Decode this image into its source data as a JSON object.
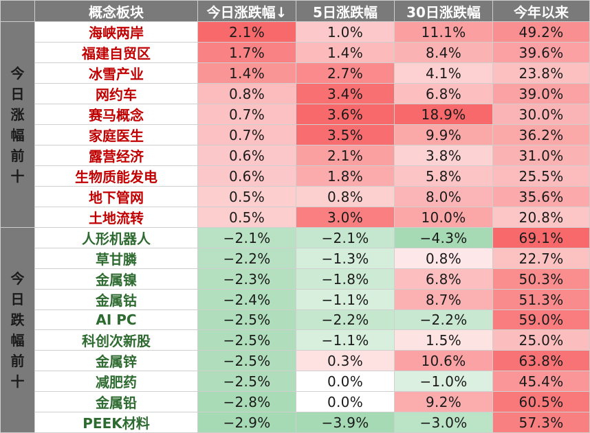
{
  "header": {
    "col_name": "概念板块",
    "col_today": "今日涨跌幅↓",
    "col_5d": "5日涨跌幅",
    "col_30d": "30日涨跌幅",
    "col_ytd": "今年以来"
  },
  "groups": [
    {
      "label": "今日涨幅前十",
      "direction": "gain",
      "rows": [
        {
          "name": "海峡两岸",
          "today": "2.1%",
          "d5": "1.0%",
          "d30": "11.1%",
          "ytd": "49.2%"
        },
        {
          "name": "福建自贸区",
          "today": "1.7%",
          "d5": "1.4%",
          "d30": "8.4%",
          "ytd": "39.6%"
        },
        {
          "name": "冰雪产业",
          "today": "1.4%",
          "d5": "2.7%",
          "d30": "4.1%",
          "ytd": "23.8%"
        },
        {
          "name": "网约车",
          "today": "0.8%",
          "d5": "3.4%",
          "d30": "6.8%",
          "ytd": "39.0%"
        },
        {
          "name": "赛马概念",
          "today": "0.7%",
          "d5": "3.6%",
          "d30": "18.9%",
          "ytd": "30.0%"
        },
        {
          "name": "家庭医生",
          "today": "0.7%",
          "d5": "3.5%",
          "d30": "9.9%",
          "ytd": "36.2%"
        },
        {
          "name": "露营经济",
          "today": "0.6%",
          "d5": "2.1%",
          "d30": "3.8%",
          "ytd": "31.0%"
        },
        {
          "name": "生物质能发电",
          "today": "0.6%",
          "d5": "1.8%",
          "d30": "5.8%",
          "ytd": "25.5%"
        },
        {
          "name": "地下管网",
          "today": "0.5%",
          "d5": "0.8%",
          "d30": "8.0%",
          "ytd": "35.6%"
        },
        {
          "name": "土地流转",
          "today": "0.5%",
          "d5": "3.0%",
          "d30": "10.0%",
          "ytd": "20.8%"
        }
      ]
    },
    {
      "label": "今日跌幅前十",
      "direction": "loss",
      "rows": [
        {
          "name": "人形机器人",
          "today": "−2.1%",
          "d5": "−2.1%",
          "d30": "−4.3%",
          "ytd": "69.1%"
        },
        {
          "name": "草甘膦",
          "today": "−2.2%",
          "d5": "−1.3%",
          "d30": "0.8%",
          "ytd": "22.7%"
        },
        {
          "name": "金属镍",
          "today": "−2.3%",
          "d5": "−1.8%",
          "d30": "6.8%",
          "ytd": "50.3%"
        },
        {
          "name": "金属钴",
          "today": "−2.4%",
          "d5": "−1.1%",
          "d30": "8.7%",
          "ytd": "51.3%"
        },
        {
          "name": "AI PC",
          "today": "−2.5%",
          "d5": "−2.2%",
          "d30": "−2.2%",
          "ytd": "59.0%"
        },
        {
          "name": "科创次新股",
          "today": "−2.5%",
          "d5": "−1.1%",
          "d30": "1.5%",
          "ytd": "25.0%"
        },
        {
          "name": "金属锌",
          "today": "−2.5%",
          "d5": "0.3%",
          "d30": "10.6%",
          "ytd": "63.8%"
        },
        {
          "name": "减肥药",
          "today": "−2.5%",
          "d5": "0.0%",
          "d30": "−1.0%",
          "ytd": "45.4%"
        },
        {
          "name": "金属铅",
          "today": "−2.8%",
          "d5": "0.0%",
          "d30": "9.2%",
          "ytd": "60.5%"
        },
        {
          "name": "PEEK材料",
          "today": "−2.9%",
          "d5": "−3.9%",
          "d30": "−3.0%",
          "ytd": "57.3%"
        }
      ]
    }
  ],
  "colors": {
    "header_bg": "#7a7a7a",
    "gain_text": "#c00000",
    "loss_text": "#2e6b30",
    "positive_heat": "#f8696b",
    "negative_heat": "#63be7b"
  }
}
